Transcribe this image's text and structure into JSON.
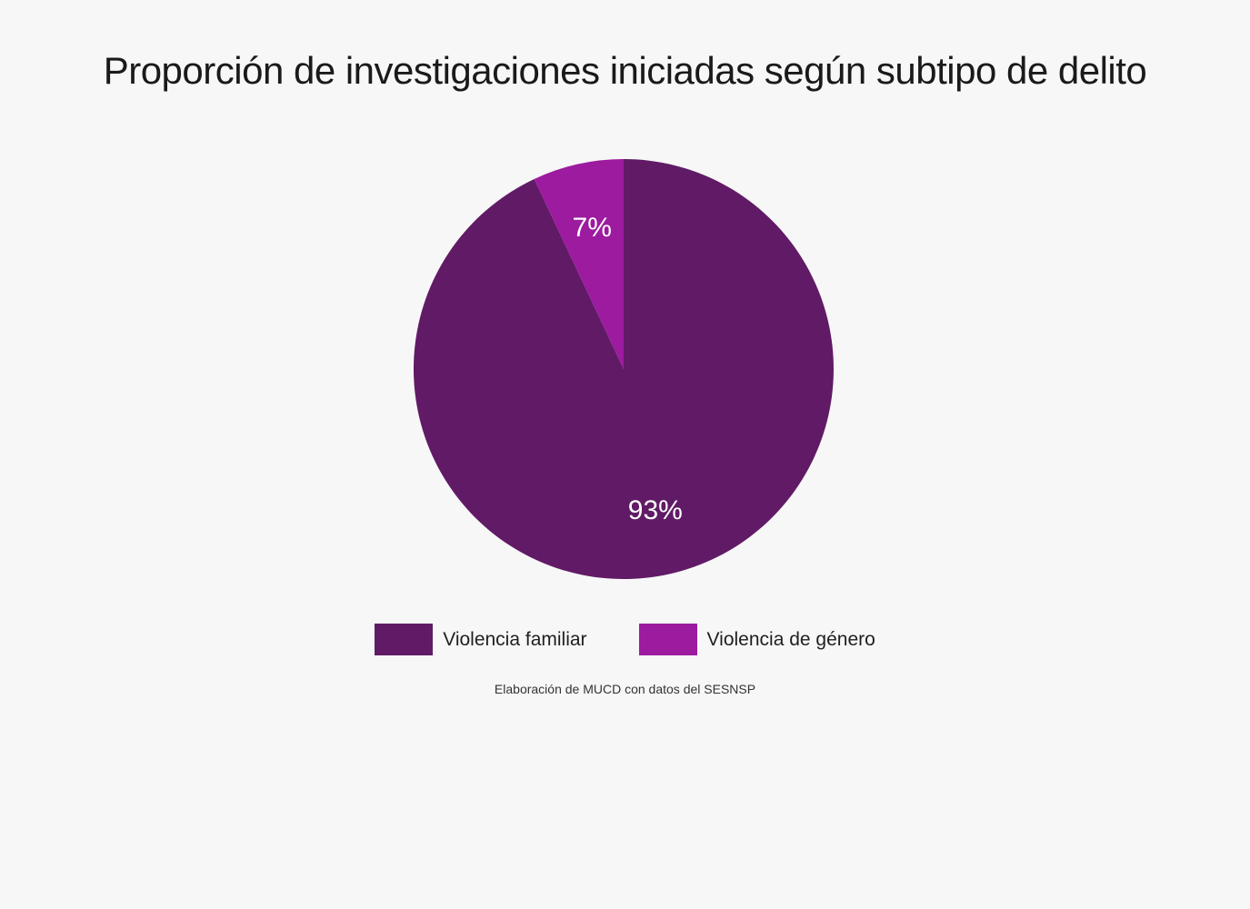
{
  "page": {
    "background_color": "#f7f7f7"
  },
  "chart_data": {
    "type": "pie",
    "title": "Proporción de investigaciones iniciadas según subtipo de delito",
    "slices": [
      {
        "label": "Violencia familiar",
        "value": 93,
        "pct_label": "93%",
        "color": "#611a66"
      },
      {
        "label": "Violencia de género",
        "value": 7,
        "pct_label": "7%",
        "color": "#9c1b9f"
      }
    ],
    "start_angle_deg": 0,
    "direction": "clockwise",
    "slice_label_color": "#ffffff",
    "legend_position": "bottom",
    "source": "Elaboración de MUCD con datos del SESNSP"
  }
}
